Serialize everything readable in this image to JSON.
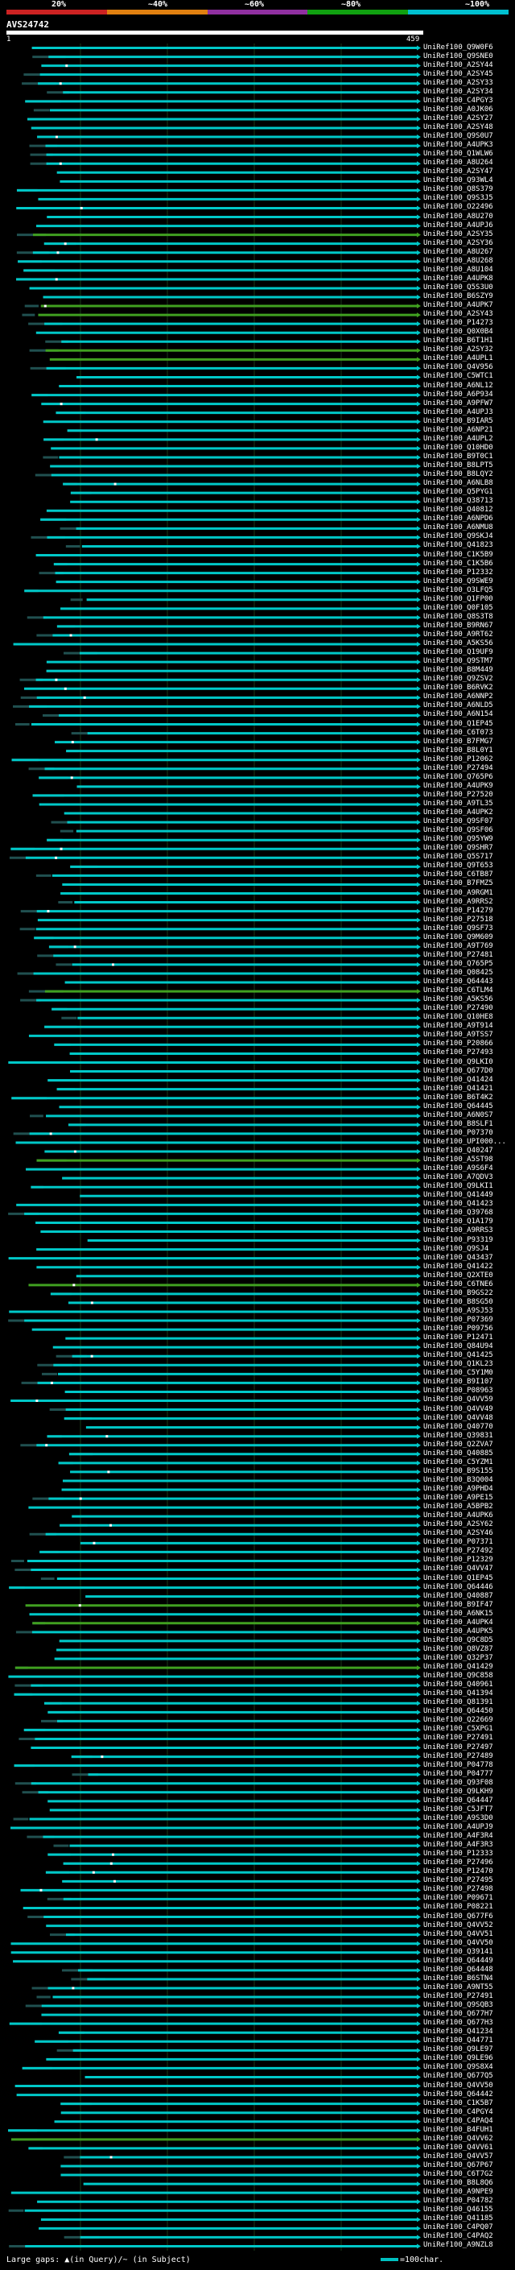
{
  "header": {
    "legend_labels": [
      "20%",
      "~40%",
      "~60%",
      "~80%",
      "~100%"
    ],
    "legend_colors": [
      "#cc2222",
      "#e08010",
      "#9030a0",
      "#10a010",
      "#00c0d0"
    ],
    "query_id": "AVS24742",
    "scale_start": "1",
    "scale_end": "459"
  },
  "colors": {
    "cyan": "#00c8c8",
    "green": "#40a020",
    "dark": "#205050",
    "gap": "#ffffff"
  },
  "hits": [
    "UniRef100_Q9W0F6",
    "UniRef100_Q9SNE0",
    "UniRef100_A2SY44",
    "UniRef100_A2SY45",
    "UniRef100_A2SY33",
    "UniRef100_A2SY34",
    "UniRef100_C4PGY3",
    "UniRef100_A0JK06",
    "UniRef100_A2SY27",
    "UniRef100_A2SY48",
    "UniRef100_Q9S0U7",
    "UniRef100_A4UPK3",
    "UniRef100_Q1WLW6",
    "UniRef100_A8U264",
    "UniRef100_A2SY47",
    "UniRef100_Q93WL4",
    "UniRef100_Q8S379",
    "UniRef100_Q9S3J5",
    "UniRef100_O22496",
    "UniRef100_A8U270",
    "UniRef100_A4UPJ6",
    "UniRef100_A2SY35",
    "UniRef100_A2SY36",
    "UniRef100_A8U267",
    "UniRef100_A8U268",
    "UniRef100_A8U104",
    "UniRef100_A4UPK8",
    "UniRef100_Q5S3U0",
    "UniRef100_B6SZY9",
    "UniRef100_A4UPK7",
    "UniRef100_A2SY43",
    "UniRef100_P14273",
    "UniRef100_Q0X0B4",
    "UniRef100_B6T1H1",
    "UniRef100_A2SY32",
    "UniRef100_A4UPL1",
    "UniRef100_Q4V956",
    "UniRef100_C5WTC1",
    "UniRef100_A6NL12",
    "UniRef100_A6P934",
    "UniRef100_A9PFW7",
    "UniRef100_A4UPJ3",
    "UniRef100_B9IAR5",
    "UniRef100_A6NP21",
    "UniRef100_A4UPL2",
    "UniRef100_Q10HD0",
    "UniRef100_B9T0C1",
    "UniRef100_B8LPT5",
    "UniRef100_B8LQY2",
    "UniRef100_A6NLB8",
    "UniRef100_Q5PYG1",
    "UniRef100_Q38713",
    "UniRef100_Q40812",
    "UniRef100_A6NPD6",
    "UniRef100_A6NMU8",
    "UniRef100_Q9SKJ4",
    "UniRef100_Q41823",
    "UniRef100_C1K5B9",
    "UniRef100_C1K5B6",
    "UniRef100_P12332",
    "UniRef100_Q9SWE9",
    "UniRef100_O3LFQ5",
    "UniRef100_Q1FP00",
    "UniRef100_Q0F105",
    "UniRef100_Q8S3T8",
    "UniRef100_B9RN67",
    "UniRef100_A9RT62",
    "UniRef100_A5KS56",
    "UniRef100_Q19UF9",
    "UniRef100_Q9STM7",
    "UniRef100_B8M449",
    "UniRef100_Q9ZSV2",
    "UniRef100_B6RVK2",
    "UniRef100_A6NNP2",
    "UniRef100_A6NLD5",
    "UniRef100_A6N154",
    "UniRef100_Q1EP45",
    "UniRef100_C6T073",
    "UniRef100_B7FMG7",
    "UniRef100_B8L0Y1",
    "UniRef100_P12062",
    "UniRef100_P27494",
    "UniRef100_Q765P6",
    "UniRef100_A4UPK9",
    "UniRef100_P27520",
    "UniRef100_A9TL35",
    "UniRef100_A4UPK2",
    "UniRef100_Q9SF07",
    "UniRef100_Q9SF06",
    "UniRef100_Q95YW9",
    "UniRef100_Q9SHR7",
    "UniRef100_Q5S717",
    "UniRef100_Q9T653",
    "UniRef100_C6TB87",
    "UniRef100_B7FMZ5",
    "UniRef100_A9RGM1",
    "UniRef100_A9RRS2",
    "UniRef100_P14279",
    "UniRef100_P27518",
    "UniRef100_Q9SF73",
    "UniRef100_Q9M609",
    "UniRef100_A9T769",
    "UniRef100_P27481",
    "UniRef100_Q765P5",
    "UniRef100_Q08425",
    "UniRef100_Q64443",
    "UniRef100_C6TLM4",
    "UniRef100_A5KS56",
    "UniRef100_P27490",
    "UniRef100_Q10HE8",
    "UniRef100_A9T914",
    "UniRef100_A9TSS7",
    "UniRef100_P20866",
    "UniRef100_P27493",
    "UniRef100_Q9LKI0",
    "UniRef100_Q677D0",
    "UniRef100_Q41424",
    "UniRef100_Q41421",
    "UniRef100_B6T4K2",
    "UniRef100_Q64445",
    "UniRef100_A6N0S7",
    "UniRef100_B8SLF1",
    "UniRef100_P07370",
    "UniRef100_UPI000...",
    "UniRef100_Q40247",
    "UniRef100_A5ST98",
    "UniRef100_A9S6F4",
    "UniRef100_A7QDV3",
    "UniRef100_Q9LKI1",
    "UniRef100_Q41449",
    "UniRef100_Q41423",
    "UniRef100_Q39768",
    "UniRef100_Q1A179",
    "UniRef100_A9RRS3",
    "UniRef100_P93319",
    "UniRef100_Q9SJ4",
    "UniRef100_Q43437",
    "UniRef100_Q41422",
    "UniRef100_Q2XTE0",
    "UniRef100_C6TNE6",
    "UniRef100_B9GS22",
    "UniRef100_B8SG50",
    "UniRef100_A9SJ53",
    "UniRef100_P07369",
    "UniRef100_P09756",
    "UniRef100_P12471",
    "UniRef100_Q84U94",
    "UniRef100_Q41425",
    "UniRef100_Q1KL23",
    "UniRef100_C5Y1M0",
    "UniRef100_B9I107",
    "UniRef100_P08963",
    "UniRef100_Q4VV59",
    "UniRef100_Q4VV49",
    "UniRef100_Q4VV48",
    "UniRef100_Q40770",
    "UniRef100_Q39831",
    "UniRef100_Q2ZVA7",
    "UniRef100_Q40885",
    "UniRef100_C5YZM1",
    "UniRef100_B9S155",
    "UniRef100_B3Q004",
    "UniRef100_A9PHD4",
    "UniRef100_A9PE15",
    "UniRef100_A5BPB2",
    "UniRef100_A4UPK6",
    "UniRef100_A2SY62",
    "UniRef100_A2SY46",
    "UniRef100_P07371",
    "UniRef100_P27492",
    "UniRef100_P12329",
    "UniRef100_Q4VV47",
    "UniRef100_Q1EP45",
    "UniRef100_Q64446",
    "UniRef100_Q40887",
    "UniRef100_B9IF47",
    "UniRef100_A6NK15",
    "UniRef100_A4UPK4",
    "UniRef100_A4UPK5",
    "UniRef100_Q9C8D5",
    "UniRef100_Q8VZ87",
    "UniRef100_Q32P37",
    "UniRef100_Q41429",
    "UniRef100_Q9C858",
    "UniRef100_Q40961",
    "UniRef100_Q41394",
    "UniRef100_Q81391",
    "UniRef100_Q64450",
    "UniRef100_Q22669",
    "UniRef100_C5XPG1",
    "UniRef100_P27491",
    "UniRef100_P27497",
    "UniRef100_P27489",
    "UniRef100_P04778",
    "UniRef100_P04777",
    "UniRef100_Q93F08",
    "UniRef100_Q9LKH9",
    "UniRef100_Q64447",
    "UniRef100_C5JFT7",
    "UniRef100_A9S3D0",
    "UniRef100_A4UPJ9",
    "UniRef100_A4F3R4",
    "UniRef100_A4F3R3",
    "UniRef100_P12333",
    "UniRef100_P27496",
    "UniRef100_P12470",
    "UniRef100_P27495",
    "UniRef100_P27498",
    "UniRef100_P09671",
    "UniRef100_P08221",
    "UniRef100_Q677F6",
    "UniRef100_Q4VV52",
    "UniRef100_Q4VV51",
    "UniRef100_Q4VV50",
    "UniRef100_Q39141",
    "UniRef100_Q64449",
    "UniRef100_Q64448",
    "UniRef100_B6STN4",
    "UniRef100_A9NT55",
    "UniRef100_P27491",
    "UniRef100_Q9SQB3",
    "UniRef100_Q677H7",
    "UniRef100_Q677H3",
    "UniRef100_Q41234",
    "UniRef100_Q44771",
    "UniRef100_Q9LE97",
    "UniRef100_Q9LE96",
    "UniRef100_Q9S8X4",
    "UniRef100_Q677Q5",
    "UniRef100_Q4VV50",
    "UniRef100_Q64442",
    "UniRef100_C1K5B7",
    "UniRef100_C4PGY4",
    "UniRef100_C4PAQ4",
    "UniRef100_B4FUH1",
    "UniRef100_Q4VV62",
    "UniRef100_Q4VV61",
    "UniRef100_Q4VV57",
    "UniRef100_Q67P67",
    "UniRef100_C6T7G2",
    "UniRef100_B8L8Q6",
    "UniRef100_A9NPE9",
    "UniRef100_P04782",
    "UniRef100_Q46155",
    "UniRef100_Q41185",
    "UniRef100_C4PQ07",
    "UniRef100_C4PAQ2",
    "UniRef100_A9NZL8"
  ],
  "footer": {
    "gaps_label": "Large gaps: ",
    "query_mark": "▲",
    "query_text": "(in Query)/",
    "subject_mark": "~",
    "subject_text": " (in Subject)",
    "scale_text": "=100char."
  }
}
